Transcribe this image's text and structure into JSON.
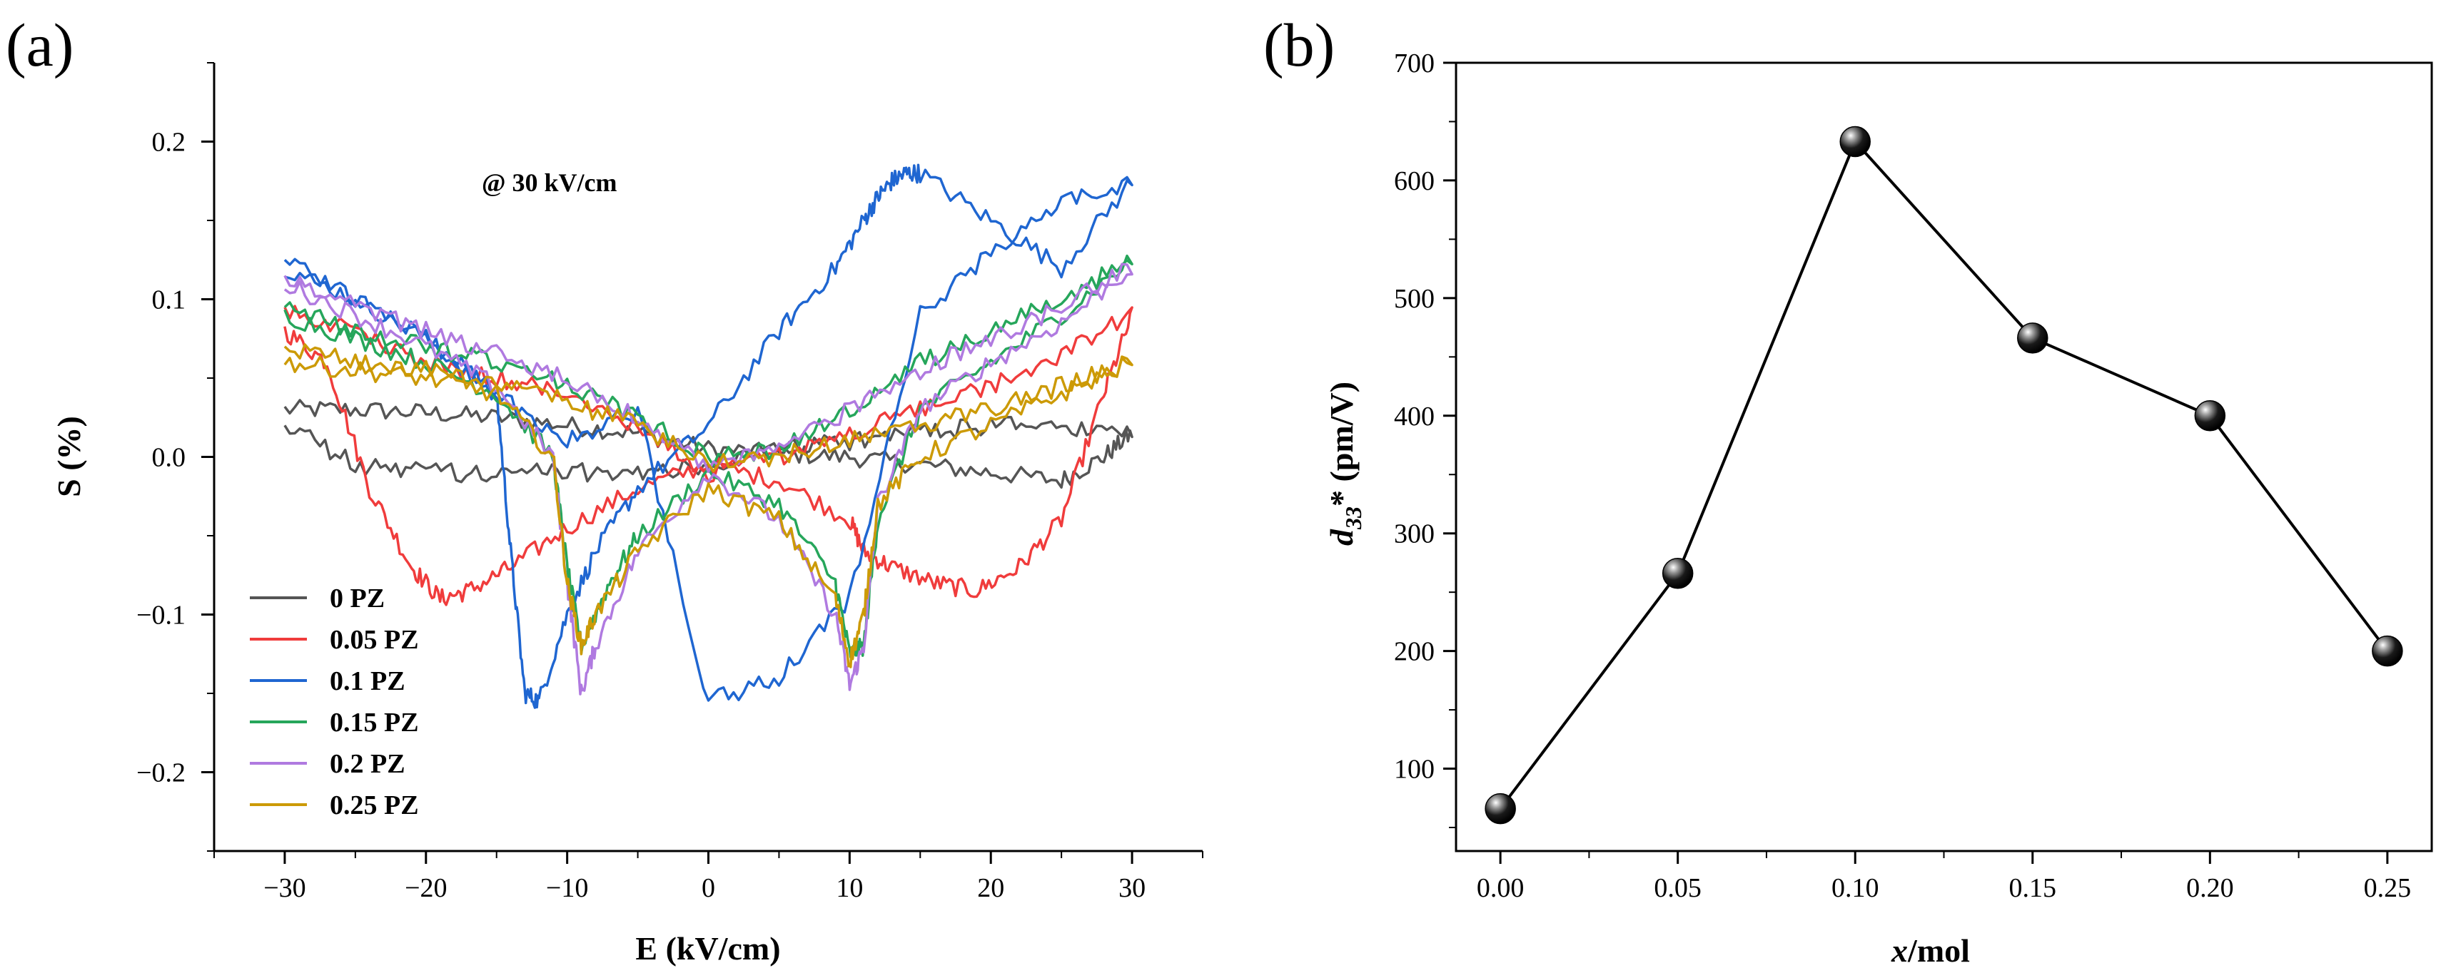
{
  "panel_a": {
    "label": "(a)",
    "annotation": "@ 30 kV/cm",
    "chart_data": {
      "type": "line",
      "title": "",
      "xlabel": "E (kV/cm)",
      "ylabel": "S (%)",
      "xlim": [
        -35,
        35
      ],
      "ylim": [
        -0.25,
        0.25
      ],
      "xticks": [
        -30,
        -20,
        -10,
        0,
        10,
        20,
        30
      ],
      "yticks": [
        -0.2,
        -0.1,
        0.0,
        0.1,
        0.2
      ],
      "xtick_labels": [
        "−30",
        "−20",
        "−10",
        "0",
        "10",
        "20",
        "30"
      ],
      "ytick_labels": [
        "−0.2",
        "−0.1",
        "0.0",
        "0.1",
        "0.2"
      ],
      "legend_position": "bottom-left",
      "series": [
        {
          "name": "0 PZ",
          "color": "#555555",
          "x": [
            -30,
            -25,
            -20,
            -15,
            -10,
            -5,
            0,
            5,
            10,
            15,
            20,
            25,
            28,
            30,
            25,
            20,
            15,
            10,
            5,
            0,
            -5,
            -10,
            -15,
            -20,
            -25,
            -30
          ],
          "y": [
            0.03,
            0.03,
            0.028,
            0.025,
            0.02,
            0.015,
            0.005,
            0.002,
            0.0,
            -0.005,
            -0.01,
            -0.015,
            0.0,
            0.015,
            0.02,
            0.02,
            0.015,
            0.01,
            0.005,
            -0.005,
            -0.01,
            -0.01,
            -0.01,
            -0.01,
            -0.005,
            0.02
          ]
        },
        {
          "name": "0.05 PZ",
          "color": "#f03c3c",
          "x": [
            -30,
            -27,
            -24,
            -21,
            -19,
            -17,
            -14,
            -10,
            -5,
            0,
            5,
            10,
            11,
            13,
            16,
            19,
            22,
            25,
            28,
            30,
            25,
            20,
            15,
            10,
            5,
            0,
            -5,
            -10,
            -15,
            -20,
            -25,
            -30
          ],
          "y": [
            0.08,
            0.06,
            -0.02,
            -0.07,
            -0.09,
            -0.085,
            -0.07,
            -0.045,
            -0.02,
            -0.005,
            -0.015,
            -0.04,
            -0.06,
            -0.07,
            -0.08,
            -0.085,
            -0.07,
            -0.04,
            0.04,
            0.09,
            0.065,
            0.045,
            0.03,
            0.015,
            0.0,
            -0.01,
            0.02,
            0.04,
            0.05,
            0.06,
            0.08,
            0.095
          ]
        },
        {
          "name": "0.1 PZ",
          "color": "#1f66d1",
          "x": [
            -30,
            -25,
            -20,
            -15,
            -14,
            -13,
            -12,
            -10,
            -8,
            -5,
            0,
            5,
            9,
            11,
            12,
            13,
            14,
            15,
            20,
            25,
            30,
            25,
            20,
            15,
            10,
            5,
            0,
            -5,
            -10,
            -15,
            -20,
            -25,
            -30
          ],
          "y": [
            0.12,
            0.1,
            0.075,
            0.04,
            -0.06,
            -0.15,
            -0.155,
            -0.1,
            -0.06,
            -0.02,
            0.02,
            0.08,
            0.12,
            0.15,
            0.165,
            0.175,
            0.18,
            0.18,
            0.15,
            0.12,
            0.175,
            0.16,
            0.13,
            0.09,
            -0.09,
            -0.14,
            -0.155,
            0.03,
            0.01,
            0.04,
            0.075,
            0.1,
            0.125
          ]
        },
        {
          "name": "0.15 PZ",
          "color": "#26a65b",
          "x": [
            -30,
            -25,
            -20,
            -15,
            -11,
            -10,
            -9,
            -7,
            -5,
            0,
            5,
            9,
            10,
            11,
            12,
            15,
            20,
            25,
            30,
            25,
            20,
            15,
            10,
            5,
            0,
            -5,
            -10,
            -15,
            -20,
            -25,
            -30
          ],
          "y": [
            0.09,
            0.075,
            0.06,
            0.04,
            0.0,
            -0.07,
            -0.12,
            -0.08,
            -0.05,
            -0.01,
            -0.03,
            -0.08,
            -0.125,
            -0.12,
            -0.04,
            0.03,
            0.06,
            0.09,
            0.125,
            0.1,
            0.08,
            0.06,
            0.03,
            0.005,
            0.0,
            0.025,
            0.045,
            0.06,
            0.07,
            0.08,
            0.095
          ]
        },
        {
          "name": "0.2 PZ",
          "color": "#b07ae0",
          "x": [
            -30,
            -25,
            -20,
            -15,
            -11,
            -10,
            -9,
            -8,
            -5,
            0,
            5,
            9,
            10,
            11,
            12,
            15,
            20,
            25,
            30,
            25,
            20,
            15,
            10,
            5,
            0,
            -5,
            -10,
            -15,
            -20,
            -25,
            -30
          ],
          "y": [
            0.11,
            0.09,
            0.07,
            0.045,
            0.0,
            -0.08,
            -0.15,
            -0.12,
            -0.06,
            -0.01,
            -0.04,
            -0.1,
            -0.145,
            -0.12,
            -0.03,
            0.03,
            0.06,
            0.085,
            0.12,
            0.095,
            0.075,
            0.055,
            0.03,
            0.005,
            -0.005,
            0.025,
            0.05,
            0.065,
            0.08,
            0.095,
            0.115
          ]
        },
        {
          "name": "0.25 PZ",
          "color": "#cc9a06",
          "x": [
            -30,
            -25,
            -20,
            -15,
            -11,
            -10,
            -9,
            -8,
            -5,
            0,
            5,
            9,
            10,
            11,
            12,
            15,
            20,
            25,
            30,
            25,
            20,
            15,
            10,
            5,
            0,
            -5,
            -10,
            -15,
            -20,
            -25,
            -30
          ],
          "y": [
            0.06,
            0.055,
            0.05,
            0.04,
            0.0,
            -0.08,
            -0.12,
            -0.1,
            -0.06,
            -0.02,
            -0.04,
            -0.09,
            -0.13,
            -0.1,
            -0.03,
            0.0,
            0.02,
            0.04,
            0.06,
            0.045,
            0.03,
            0.02,
            0.01,
            0.0,
            -0.005,
            0.02,
            0.035,
            0.045,
            0.055,
            0.06,
            0.07
          ]
        }
      ]
    }
  },
  "panel_b": {
    "label": "(b)",
    "ylabel_main": "d",
    "ylabel_sub": "33",
    "ylabel_rest": "* (pm/V)",
    "xlabel_main": "x",
    "xlabel_rest": "/mol",
    "chart_data": {
      "type": "line",
      "title": "",
      "xlabel": "x/mol",
      "ylabel": "d33* (pm/V)",
      "xlim": [
        -0.0125,
        0.2625
      ],
      "ylim": [
        30,
        700
      ],
      "xticks": [
        0.0,
        0.05,
        0.1,
        0.15,
        0.2,
        0.25
      ],
      "xtick_labels": [
        "0.00",
        "0.05",
        "0.10",
        "0.15",
        "0.20",
        "0.25"
      ],
      "yticks": [
        100,
        200,
        300,
        400,
        500,
        600,
        700
      ],
      "ytick_labels": [
        "100",
        "200",
        "300",
        "400",
        "500",
        "600",
        "700"
      ],
      "x": [
        0.0,
        0.05,
        0.1,
        0.15,
        0.2,
        0.25
      ],
      "y": [
        66,
        266,
        633,
        466,
        400,
        200
      ],
      "marker": "sphere",
      "color": "#000000"
    }
  }
}
